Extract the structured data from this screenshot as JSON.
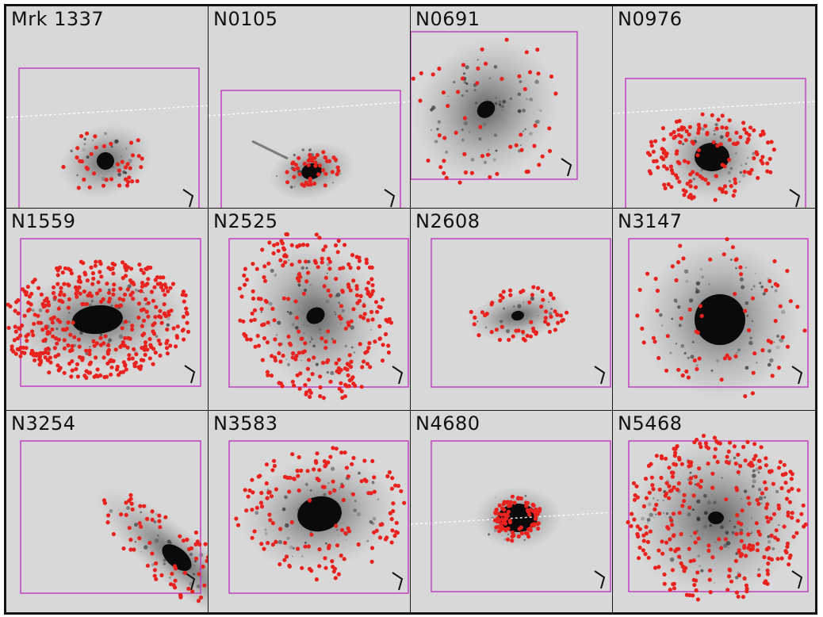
{
  "figure": {
    "panels": [
      {
        "id": "mrk1337",
        "label": "Mrk 1337"
      },
      {
        "id": "n0105",
        "label": "N0105"
      },
      {
        "id": "n0691",
        "label": "N0691"
      },
      {
        "id": "n0976",
        "label": "N0976"
      },
      {
        "id": "n1559",
        "label": "N1559"
      },
      {
        "id": "n2525",
        "label": "N2525"
      },
      {
        "id": "n2608",
        "label": "N2608"
      },
      {
        "id": "n3147",
        "label": "N3147"
      },
      {
        "id": "n3254",
        "label": "N3254"
      },
      {
        "id": "n3583",
        "label": "N3583"
      },
      {
        "id": "n4680",
        "label": "N4680"
      },
      {
        "id": "n5468",
        "label": "N5468"
      }
    ],
    "colors": {
      "background": "#d8d8d8",
      "galaxy": "#0a0a0a",
      "markers": "#e8231f",
      "box": "#c040c0",
      "slit": "#ffffff"
    }
  }
}
